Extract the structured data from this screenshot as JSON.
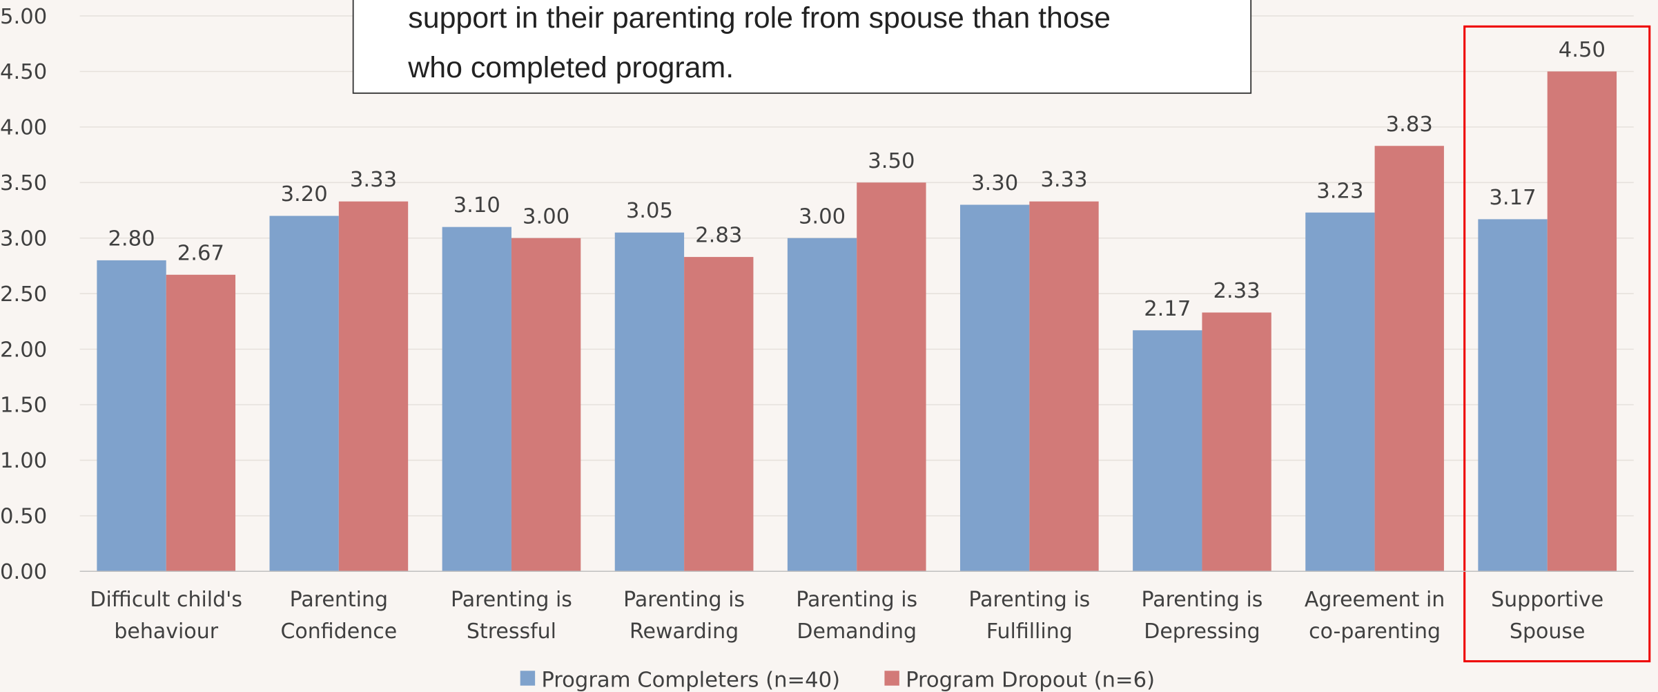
{
  "chart_data": {
    "type": "bar",
    "categories": [
      "Difficult child's\nbehaviour",
      "Parenting\nConfidence",
      "Parenting is\nStressful",
      "Parenting is\nRewarding",
      "Parenting is\nDemanding",
      "Parenting is\nFulfilling",
      "Parenting is\nDepressing",
      "Agreement in\nco-parenting",
      "Supportive\nSpouse"
    ],
    "series": [
      {
        "name": "Program Completers (n=40)",
        "color": "#7fa2cc",
        "values": [
          2.8,
          3.2,
          3.1,
          3.05,
          3.0,
          3.3,
          2.17,
          3.23,
          3.17
        ],
        "value_labels": [
          "2.80",
          "3.20",
          "3.10",
          "3.05",
          "3.00",
          "3.30",
          "2.17",
          "3.23",
          "3.17"
        ]
      },
      {
        "name": "Program Dropout (n=6)",
        "color": "#d27a78",
        "values": [
          2.67,
          3.33,
          3.0,
          2.83,
          3.5,
          3.33,
          2.33,
          3.83,
          4.5
        ],
        "value_labels": [
          "2.67",
          "3.33",
          "3.00",
          "2.83",
          "3.50",
          "3.33",
          "2.33",
          "3.83",
          "4.50"
        ]
      }
    ],
    "ylim": [
      0,
      5
    ],
    "yticks": [
      {
        "value": 0,
        "label": "0.00"
      },
      {
        "value": 0.5,
        "label": "0.50"
      },
      {
        "value": 1,
        "label": "1.00"
      },
      {
        "value": 1.5,
        "label": "1.50"
      },
      {
        "value": 2,
        "label": "2.00"
      },
      {
        "value": 2.5,
        "label": "2.50"
      },
      {
        "value": 3,
        "label": "3.00"
      },
      {
        "value": 3.5,
        "label": "3.50"
      },
      {
        "value": 4,
        "label": "4.00"
      },
      {
        "value": 4.5,
        "label": "4.50"
      },
      {
        "value": 5,
        "label": "5.00"
      }
    ],
    "grid": true,
    "legend": "bottom",
    "annotation": [
      "support in their parenting role from spouse than those",
      "who completed program."
    ]
  }
}
